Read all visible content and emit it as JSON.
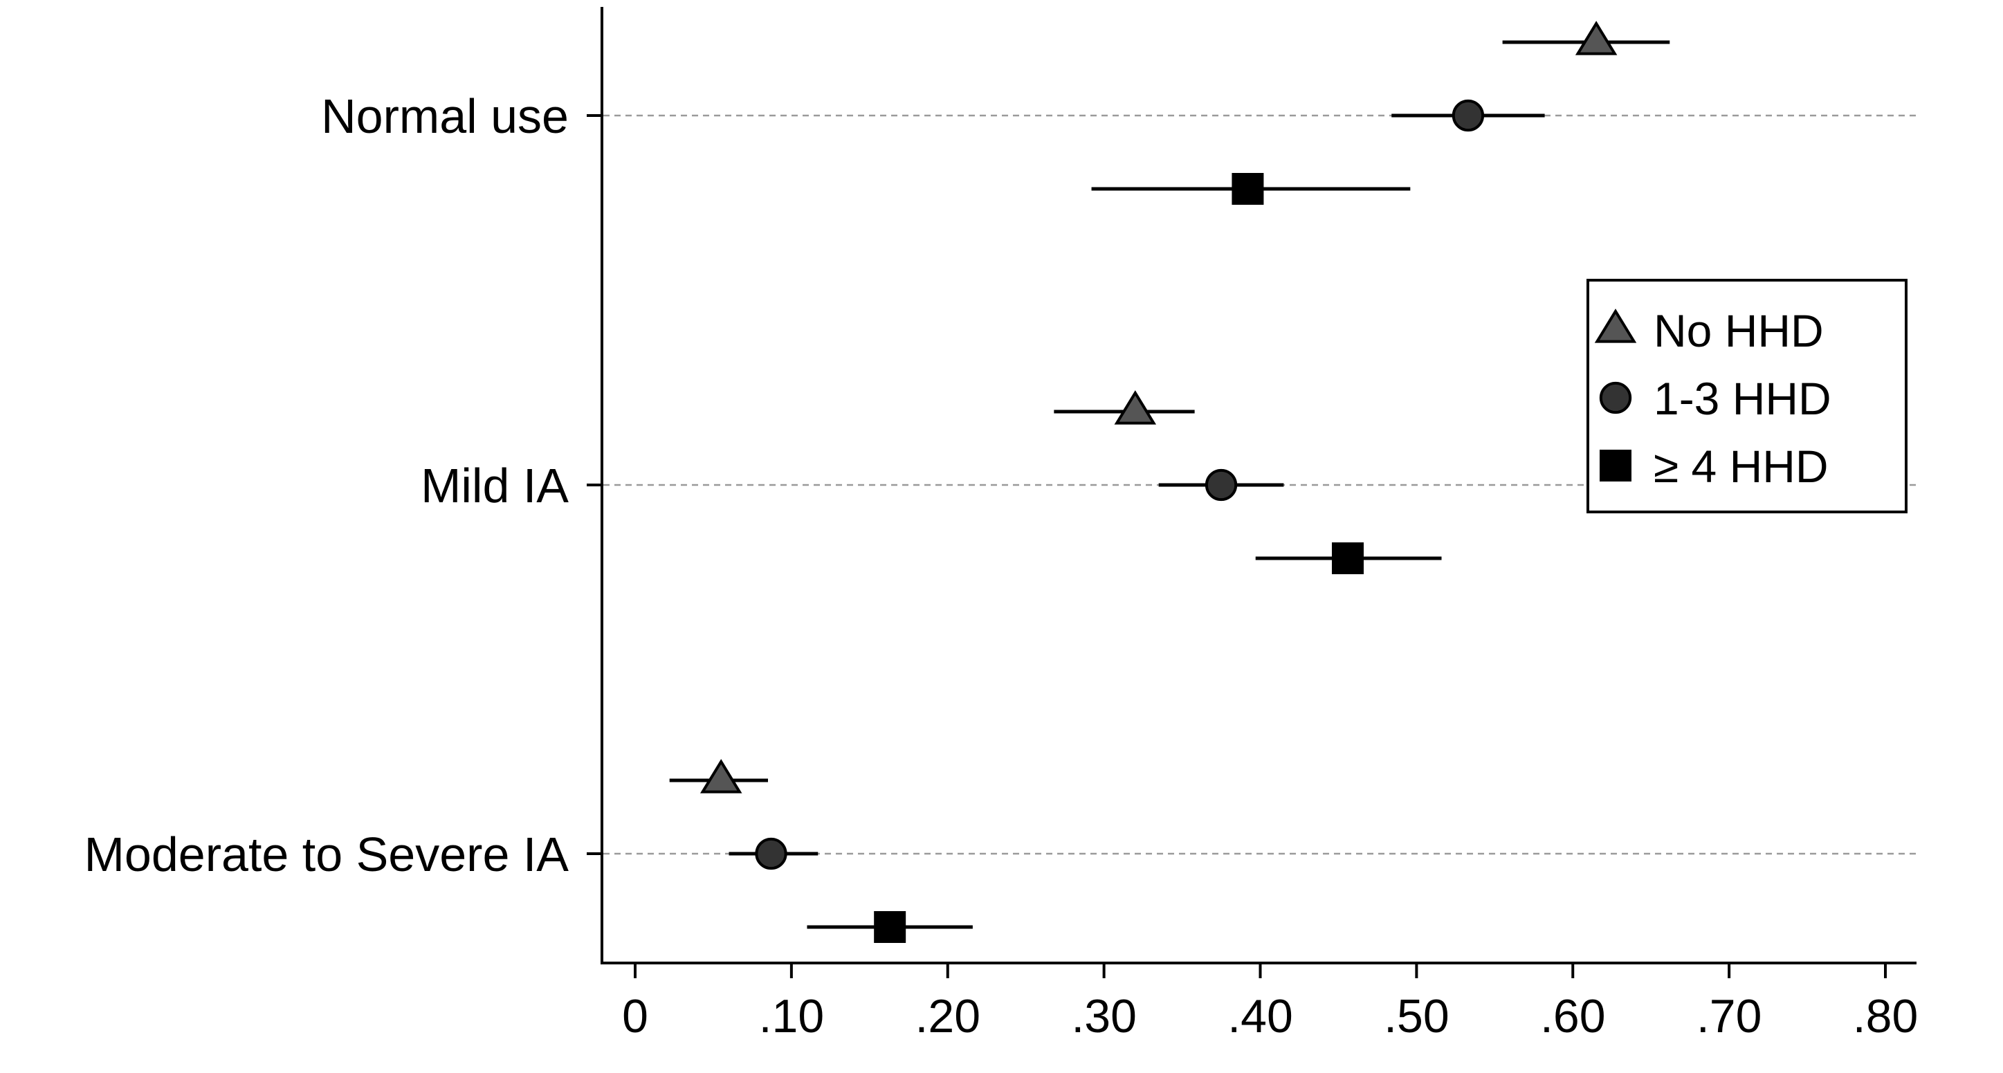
{
  "chart_data": {
    "type": "scatter",
    "subtype": "dot-with-error-bars",
    "orientation": "horizontal",
    "title": "",
    "xlabel": "",
    "ylabel": "",
    "xlim": [
      -0.01,
      0.82
    ],
    "x_ticks": [
      0,
      0.1,
      0.2,
      0.3,
      0.4,
      0.5,
      0.6,
      0.7,
      0.8
    ],
    "x_tick_labels": [
      "0",
      ".10",
      ".20",
      ".30",
      ".40",
      ".50",
      ".60",
      ".70",
      ".80"
    ],
    "categories": [
      "Normal use",
      "Mild IA",
      "Moderate to Severe IA"
    ],
    "grid": "horizontal dashed at category positions",
    "legend_position": "right-middle",
    "series": [
      {
        "name": "No HHD",
        "marker": "triangle-icon",
        "color": "#555555",
        "values": [
          0.615,
          0.32,
          0.055
        ],
        "ci_low": [
          0.555,
          0.268,
          0.022
        ],
        "ci_high": [
          0.662,
          0.358,
          0.085
        ]
      },
      {
        "name": "1-3 HHD",
        "marker": "circle-icon",
        "color": "#333333",
        "values": [
          0.533,
          0.375,
          0.087
        ],
        "ci_low": [
          0.484,
          0.335,
          0.06
        ],
        "ci_high": [
          0.582,
          0.415,
          0.117
        ]
      },
      {
        "name": "≥ 4 HHD",
        "marker": "square-icon",
        "color": "#000000",
        "values": [
          0.392,
          0.456,
          0.163
        ],
        "ci_low": [
          0.292,
          0.397,
          0.11
        ],
        "ci_high": [
          0.496,
          0.516,
          0.216
        ]
      }
    ]
  }
}
